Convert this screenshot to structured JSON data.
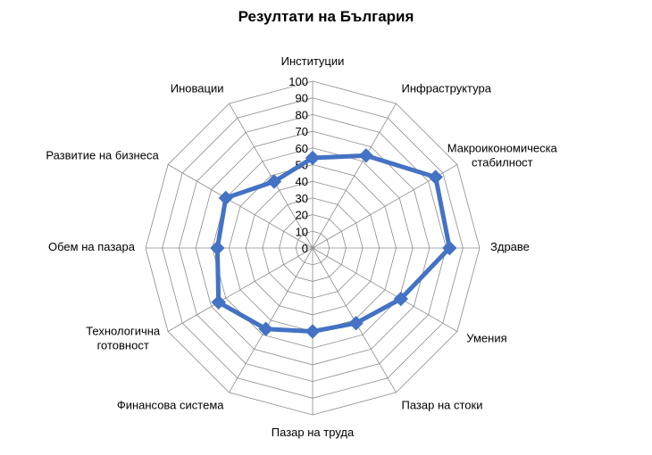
{
  "chart_data": {
    "type": "radar",
    "title": "Резултати на България",
    "categories": [
      "Институции",
      "Инфраструктура",
      "Макроикономическа стабилност",
      "Здраве",
      "Умения",
      "Пазар на стоки",
      "Пазар на труда",
      "Финансова система",
      "Технологична готовност",
      "Обем на пазара",
      "Развитие на бизнеса",
      "Иновации"
    ],
    "category_lines": [
      [
        "Институции"
      ],
      [
        "Инфраструктура"
      ],
      [
        "Макроикономическа",
        "стабилност"
      ],
      [
        "Здраве"
      ],
      [
        "Умения"
      ],
      [
        "Пазар на стоки"
      ],
      [
        "Пазар на труда"
      ],
      [
        "Финансова система"
      ],
      [
        "Технологична",
        "готовност"
      ],
      [
        "Обем на пазара"
      ],
      [
        "Развитие на бизнеса"
      ],
      [
        "Иновации"
      ]
    ],
    "series": [
      {
        "values": [
          54,
          64,
          85,
          82,
          61,
          52,
          50,
          56,
          65,
          57,
          60,
          46
        ]
      }
    ],
    "ylim": [
      0,
      100
    ],
    "ticks": [
      0,
      10,
      20,
      30,
      40,
      50,
      60,
      70,
      80,
      90,
      100
    ],
    "grid": true,
    "legend": "none",
    "colors": {
      "series": "#4472C4",
      "grid": "#8c8c8c",
      "text": "#000000"
    }
  }
}
